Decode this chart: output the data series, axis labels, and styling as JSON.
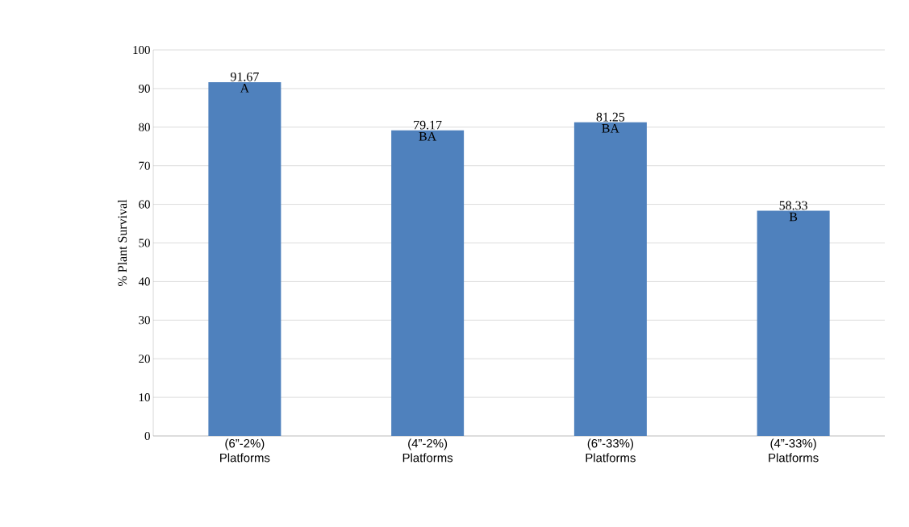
{
  "chart_data": {
    "type": "bar",
    "ylabel": "% Plant Survival",
    "categories": [
      "(6”-2%) Platforms",
      "(4”-2%) Platforms",
      "(6”-33%) Platforms",
      "(4”-33%) Platforms"
    ],
    "values": [
      91.67,
      79.17,
      81.25,
      58.33
    ],
    "color": "#4f81bd",
    "data_labels": true,
    "ylim": [
      0,
      100
    ],
    "yticks": [
      0,
      10,
      20,
      30,
      40,
      50,
      60,
      70,
      80,
      90,
      100
    ],
    "grid": "y",
    "annotations": [
      {
        "text": "A",
        "x": "(6”-2%) Platforms",
        "y": 91.67
      },
      {
        "text": "BA",
        "x": "(4”-2%) Platforms",
        "y": 79.17
      },
      {
        "text": "BA",
        "x": "(6”-33%) Platforms",
        "y": 81.25
      },
      {
        "text": "B",
        "x": "(4”-33%) Platforms",
        "y": 58.33
      }
    ]
  }
}
